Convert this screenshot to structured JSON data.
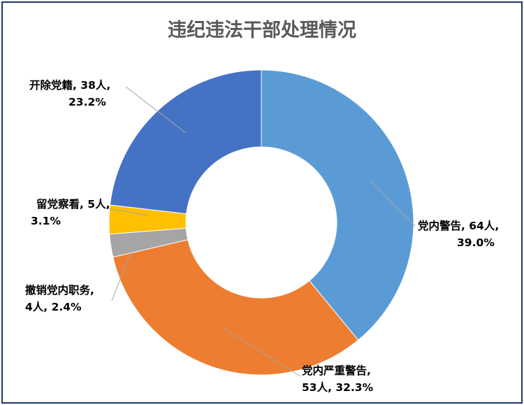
{
  "chart_data": {
    "type": "pie",
    "variant": "donut",
    "title": "违纪违法干部处理情况",
    "slices": [
      {
        "name": "党内警告",
        "value": 64,
        "percent": 39.0,
        "color": "#5b9bd5",
        "label_lines": [
          "党内警告, 64人,",
          "39.0%"
        ]
      },
      {
        "name": "党内严重警告",
        "value": 53,
        "percent": 32.3,
        "color": "#ed7d31",
        "label_lines": [
          "党内严重警告,",
          "53人, 32.3%"
        ]
      },
      {
        "name": "撤销党内职务",
        "value": 4,
        "percent": 2.4,
        "color": "#a5a5a5",
        "label_lines": [
          "撤销党内职务,",
          "4人, 2.4%"
        ]
      },
      {
        "name": "留党察看",
        "value": 5,
        "percent": 3.1,
        "color": "#ffc000",
        "label_lines": [
          "留党察看, 5人,",
          "3.1%"
        ]
      },
      {
        "name": "开除党籍",
        "value": 38,
        "percent": 23.2,
        "color": "#4472c4",
        "label_lines": [
          "开除党籍, 38人,",
          "23.2%"
        ]
      }
    ],
    "legend": "none"
  }
}
